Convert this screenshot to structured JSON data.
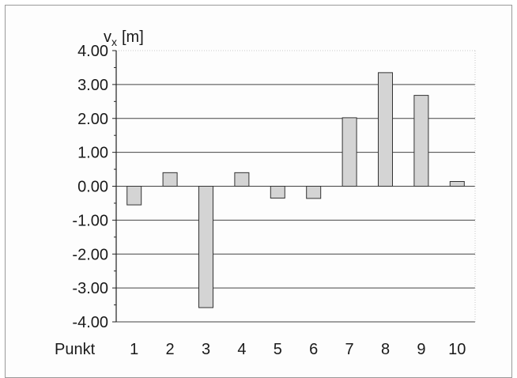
{
  "chart_data": {
    "type": "bar",
    "ylabel_base": "v",
    "ylabel_sub": "x",
    "ylabel_unit": "[m]",
    "xlabel": "Punkt",
    "categories": [
      "1",
      "2",
      "3",
      "4",
      "5",
      "6",
      "7",
      "8",
      "9",
      "10"
    ],
    "values": [
      -0.55,
      0.4,
      -3.58,
      0.4,
      -0.35,
      -0.36,
      2.02,
      3.35,
      2.68,
      0.14
    ],
    "ylim": [
      -4.0,
      4.0
    ],
    "yticks": [
      4.0,
      3.0,
      2.0,
      1.0,
      0.0,
      -1.0,
      -2.0,
      -3.0,
      -4.0
    ],
    "ytick_labels": [
      "4.00",
      "3.00",
      "2.00",
      "1.00",
      "0.00",
      "-1.00",
      "-2.00",
      "-3.00",
      "-4.00"
    ],
    "grid": true,
    "colors": {
      "bar_fill": "#d4d4d4",
      "bar_stroke": "#333333",
      "grid": "#444444",
      "top_grid": "#b8b8b8"
    }
  }
}
